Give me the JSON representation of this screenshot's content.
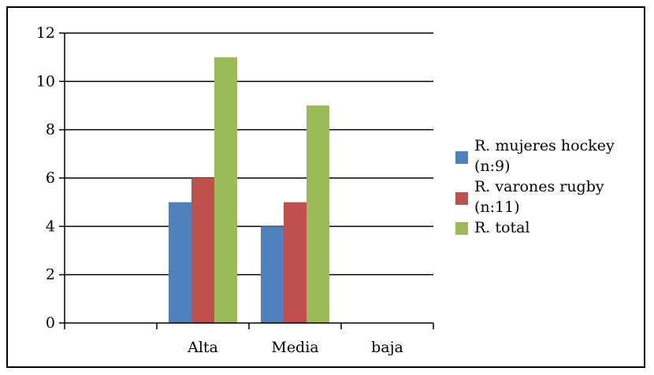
{
  "chart_data": {
    "type": "bar",
    "categories": [
      "",
      "Alta",
      "Media",
      "baja"
    ],
    "series": [
      {
        "name": "R. mujeres hockey (n:9)",
        "values": [
          null,
          5,
          4,
          null
        ],
        "color": "#4f81bd"
      },
      {
        "name": "R. varones rugby (n:11)",
        "values": [
          null,
          6,
          5,
          null
        ],
        "color": "#c0504d"
      },
      {
        "name": "R. total",
        "values": [
          null,
          11,
          9,
          null
        ],
        "color": "#9bbb59"
      }
    ],
    "yticks": [
      "0",
      "2",
      "4",
      "6",
      "8",
      "10",
      "12"
    ],
    "ylim": [
      0,
      12
    ],
    "grid": true,
    "legend_position": "right"
  },
  "legend": {
    "items": [
      {
        "line1": "R. mujeres hockey",
        "line2": "(n:9)",
        "color": "#4f81bd"
      },
      {
        "line1": "R. varones rugby",
        "line2": "(n:11)",
        "color": "#c0504d"
      },
      {
        "line1": "R. total",
        "line2": "",
        "color": "#9bbb59"
      }
    ]
  }
}
